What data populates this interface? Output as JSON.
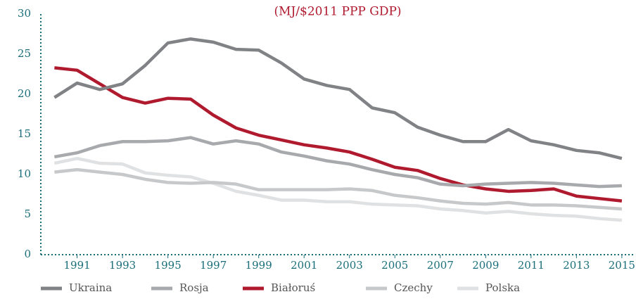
{
  "chart_data": {
    "type": "line",
    "title": "(MJ/$2011 PPP GDP)",
    "x": [
      1990,
      1991,
      1992,
      1993,
      1994,
      1995,
      1996,
      1997,
      1998,
      1999,
      2000,
      2001,
      2002,
      2003,
      2004,
      2005,
      2006,
      2007,
      2008,
      2009,
      2010,
      2011,
      2012,
      2013,
      2014,
      2015
    ],
    "series": [
      {
        "name": "Ukraina",
        "color": "#808285",
        "values": [
          19.6,
          21.4,
          20.6,
          21.3,
          23.6,
          26.4,
          26.9,
          26.5,
          25.6,
          25.5,
          23.9,
          21.9,
          21.1,
          20.6,
          18.3,
          17.7,
          15.9,
          14.9,
          14.1,
          14.1,
          15.6,
          14.2,
          13.7,
          13.0,
          12.7,
          12.0
        ]
      },
      {
        "name": "Rosja",
        "color": "#a7a9ac",
        "values": [
          12.2,
          12.7,
          13.6,
          14.1,
          14.1,
          14.2,
          14.6,
          13.8,
          14.2,
          13.8,
          12.8,
          12.3,
          11.7,
          11.3,
          10.6,
          10.0,
          9.6,
          8.8,
          8.6,
          8.8,
          8.9,
          9.0,
          8.9,
          8.7,
          8.5,
          8.6
        ]
      },
      {
        "name": "Białoruś",
        "color": "#b01a2e",
        "values": [
          23.3,
          23.0,
          21.3,
          19.6,
          18.9,
          19.5,
          19.4,
          17.4,
          15.8,
          14.9,
          14.3,
          13.7,
          13.3,
          12.8,
          11.9,
          10.9,
          10.5,
          9.5,
          8.7,
          8.2,
          7.9,
          8.0,
          8.2,
          7.3,
          7.0,
          6.7
        ]
      },
      {
        "name": "Czechy",
        "color": "#c7c8ca",
        "values": [
          10.3,
          10.6,
          10.3,
          10.0,
          9.4,
          9.0,
          8.9,
          9.0,
          8.8,
          8.1,
          8.1,
          8.1,
          8.1,
          8.2,
          8.0,
          7.4,
          7.1,
          6.7,
          6.4,
          6.3,
          6.5,
          6.2,
          6.2,
          6.1,
          5.9,
          5.7
        ]
      },
      {
        "name": "Polska",
        "color": "#e0e1e2",
        "values": [
          11.4,
          12.0,
          11.4,
          11.3,
          10.2,
          9.9,
          9.7,
          8.9,
          7.9,
          7.4,
          6.8,
          6.8,
          6.6,
          6.6,
          6.3,
          6.2,
          6.1,
          5.7,
          5.5,
          5.2,
          5.4,
          5.1,
          4.9,
          4.8,
          4.5,
          4.3
        ]
      }
    ],
    "xlim": [
      1989.4,
      2015.5
    ],
    "xticks": [
      1991,
      1993,
      1995,
      1997,
      1999,
      2001,
      2003,
      2005,
      2007,
      2009,
      2011,
      2013,
      2015
    ],
    "ylim": [
      0,
      30
    ],
    "yticks": [
      0,
      5,
      10,
      15,
      20,
      25,
      30
    ],
    "grid": false,
    "legend": "bottom"
  }
}
